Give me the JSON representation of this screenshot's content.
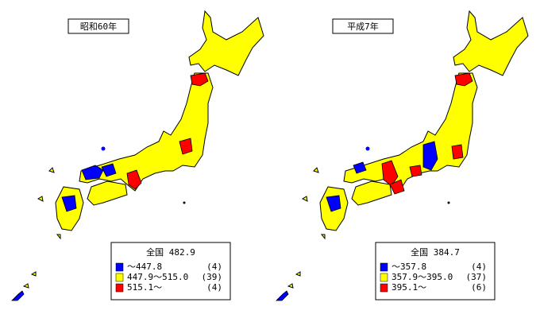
{
  "maps": [
    {
      "title": "昭和60年",
      "legend": {
        "header": "全国 482.9",
        "rows": [
          {
            "color": "#0000ff",
            "range": "～447.8",
            "count": "(4)"
          },
          {
            "color": "#ffff00",
            "range": "447.9～515.0",
            "count": "(39)"
          },
          {
            "color": "#ff0000",
            "range": "515.1～",
            "count": "(4)"
          }
        ]
      }
    },
    {
      "title": "平成7年",
      "legend": {
        "header": "全国 384.7",
        "rows": [
          {
            "color": "#0000ff",
            "range": "～357.8",
            "count": "(4)"
          },
          {
            "color": "#ffff00",
            "range": "357.9～395.0",
            "count": "(37)"
          },
          {
            "color": "#ff0000",
            "range": "395.1～",
            "count": "(6)"
          }
        ]
      }
    }
  ]
}
